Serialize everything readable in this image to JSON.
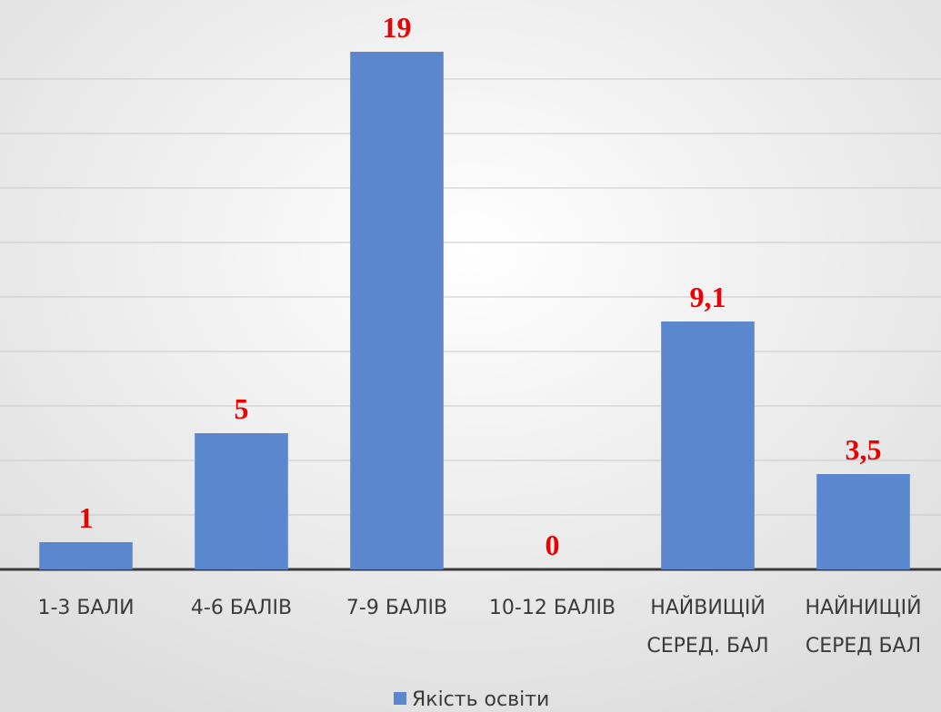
{
  "chart_data": {
    "type": "bar",
    "categories": [
      "1-3 БАЛИ",
      "4-6 БАЛІВ",
      "7-9 БАЛІВ",
      "10-12 БАЛІВ",
      "НАЙВИЩІЙ СЕРЕД. БАЛ",
      "НАЙНИЩІЙ СЕРЕД БАЛ"
    ],
    "series": [
      {
        "name": "Якість освіти",
        "color": "#5b87cf",
        "values": [
          1,
          5,
          19,
          0,
          9.1,
          3.5
        ],
        "value_labels": [
          "1",
          "5",
          "19",
          "0",
          "9,1",
          "3,5"
        ]
      }
    ],
    "ylim": [
      0,
      20
    ],
    "yticks": [
      0,
      2,
      4,
      6,
      8,
      10,
      12,
      14,
      16,
      18
    ],
    "grid": true,
    "legend": "bottom"
  }
}
